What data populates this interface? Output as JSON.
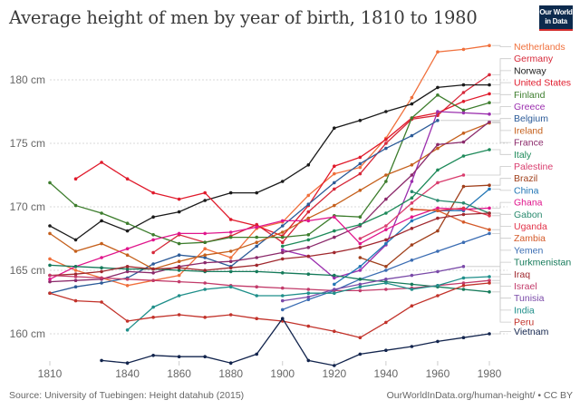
{
  "header": {
    "title": "Average height of men by year of birth, 1810 to 1980",
    "logo_line1": "Our World",
    "logo_line2": "in Data"
  },
  "footer": {
    "source": "Source: University of Tuebingen: Height datahub (2015)",
    "credit": "OurWorldInData.org/human-height/ • CC BY"
  },
  "chart_data": {
    "type": "line",
    "title": "Average height of men by year of birth, 1810 to 1980",
    "xlabel": "",
    "ylabel": "",
    "x_ticks": [
      1810,
      1840,
      1860,
      1880,
      1900,
      1920,
      1940,
      1960,
      1980
    ],
    "y_ticks": [
      160,
      165,
      170,
      175,
      180
    ],
    "y_tick_suffix": " cm",
    "xlim": [
      1810,
      1980
    ],
    "ylim": [
      157.5,
      183
    ],
    "grid": "horizontal-dotted",
    "legend": "right",
    "series": [
      {
        "name": "Netherlands",
        "color": "#f0703c",
        "x": [
          1810,
          1820,
          1830,
          1840,
          1850,
          1860,
          1870,
          1880,
          1890,
          1900,
          1910,
          1920,
          1930,
          1940,
          1950,
          1960,
          1970,
          1980
        ],
        "y": [
          165.9,
          165.0,
          164.4,
          163.8,
          164.2,
          164.6,
          166.7,
          166.0,
          168.3,
          168.8,
          170.9,
          172.6,
          173.1,
          175.4,
          178.6,
          182.2,
          182.4,
          182.7
        ]
      },
      {
        "name": "Germany",
        "color": "#d62839",
        "x": [
          1850,
          1860,
          1870,
          1880,
          1890,
          1900,
          1910,
          1920,
          1930,
          1940,
          1950,
          1960,
          1970,
          1980
        ],
        "y": [
          166.4,
          167.8,
          167.2,
          167.7,
          168.6,
          167.2,
          169.6,
          171.4,
          172.6,
          175.0,
          176.9,
          177.2,
          179.0,
          180.4
        ]
      },
      {
        "name": "Norway",
        "color": "#1b1b1b",
        "x": [
          1810,
          1820,
          1830,
          1840,
          1850,
          1860,
          1870,
          1880,
          1890,
          1900,
          1910,
          1920,
          1930,
          1940,
          1950,
          1960,
          1970,
          1980
        ],
        "y": [
          168.5,
          167.4,
          168.9,
          168.1,
          169.2,
          169.6,
          170.5,
          171.1,
          171.1,
          172.0,
          173.3,
          176.2,
          176.8,
          177.5,
          178.1,
          179.4,
          179.6,
          179.6
        ]
      },
      {
        "name": "United States",
        "color": "#e01b2c",
        "x": [
          1820,
          1830,
          1840,
          1850,
          1860,
          1870,
          1880,
          1890,
          1900,
          1910,
          1920,
          1930,
          1940,
          1950,
          1960,
          1970,
          1980
        ],
        "y": [
          172.2,
          173.5,
          172.2,
          171.1,
          170.6,
          171.1,
          169.0,
          168.5,
          167.7,
          170.1,
          173.2,
          173.9,
          175.3,
          177.0,
          177.4,
          178.3,
          178.9
        ]
      },
      {
        "name": "Finland",
        "color": "#3d7d2d",
        "x": [
          1810,
          1820,
          1830,
          1840,
          1850,
          1860,
          1870,
          1880,
          1890,
          1900,
          1910,
          1920,
          1930,
          1940,
          1950,
          1960,
          1970,
          1980
        ],
        "y": [
          171.9,
          170.1,
          169.5,
          168.7,
          167.8,
          167.1,
          167.2,
          167.6,
          167.6,
          167.6,
          167.8,
          169.3,
          169.2,
          172.0,
          177.0,
          178.8,
          177.6,
          178.2
        ]
      },
      {
        "name": "Greece",
        "color": "#9b2fae",
        "x": [
          1900,
          1910,
          1920,
          1930,
          1940,
          1950,
          1960,
          1970,
          1980
        ],
        "y": [
          166.6,
          166.1,
          164.4,
          165.0,
          167.0,
          172.0,
          177.5,
          177.4,
          177.3
        ]
      },
      {
        "name": "Belgium",
        "color": "#2c5b98",
        "x": [
          1810,
          1820,
          1830,
          1840,
          1850,
          1860,
          1870,
          1880,
          1890,
          1900,
          1910,
          1920,
          1930,
          1940,
          1950,
          1960
        ],
        "y": [
          163.2,
          163.7,
          164.0,
          164.4,
          165.5,
          166.2,
          166.0,
          165.3,
          166.9,
          168.5,
          170.2,
          171.9,
          173.4,
          174.6,
          175.6,
          176.8
        ]
      },
      {
        "name": "Ireland",
        "color": "#c5601c",
        "x": [
          1810,
          1820,
          1830,
          1840,
          1850,
          1860,
          1870,
          1880,
          1890,
          1900,
          1910,
          1920,
          1930,
          1940,
          1950,
          1960,
          1970,
          1980
        ],
        "y": [
          167.9,
          166.5,
          167.1,
          166.2,
          165.1,
          165.7,
          166.2,
          166.5,
          167.2,
          168.0,
          169.1,
          170.1,
          171.3,
          172.5,
          173.3,
          174.6,
          175.8,
          176.6
        ]
      },
      {
        "name": "France",
        "color": "#8b2a6b",
        "x": [
          1810,
          1820,
          1830,
          1840,
          1850,
          1860,
          1870,
          1880,
          1890,
          1900,
          1910,
          1920,
          1930,
          1940,
          1950,
          1960,
          1970,
          1980
        ],
        "y": [
          164.1,
          164.2,
          164.3,
          164.9,
          164.8,
          165.3,
          165.6,
          165.7,
          166.0,
          166.4,
          166.8,
          167.6,
          168.5,
          170.6,
          172.5,
          174.9,
          175.1,
          176.7
        ]
      },
      {
        "name": "Italy",
        "color": "#1e8a5a",
        "x": [
          1900,
          1910,
          1920,
          1930,
          1940,
          1950,
          1960,
          1970,
          1980
        ],
        "y": [
          166.9,
          167.4,
          168.1,
          168.6,
          169.5,
          170.7,
          172.9,
          174.0,
          174.5
        ]
      },
      {
        "name": "Palestine",
        "color": "#d93d6e",
        "x": [
          1930,
          1940,
          1950,
          1960,
          1970
        ],
        "y": [
          167.5,
          168.5,
          170.3,
          171.9,
          172.5
        ]
      },
      {
        "name": "Brazil",
        "color": "#a0401c",
        "x": [
          1930,
          1940,
          1950,
          1960,
          1970,
          1980
        ],
        "y": [
          166.0,
          165.3,
          167.0,
          168.1,
          171.6,
          171.7
        ]
      },
      {
        "name": "China",
        "color": "#2276b5",
        "x": [
          1920,
          1930,
          1940,
          1950,
          1960,
          1970,
          1980
        ],
        "y": [
          163.9,
          165.3,
          167.1,
          168.9,
          169.7,
          169.7,
          171.4
        ]
      },
      {
        "name": "Ghana",
        "color": "#e0168c",
        "x": [
          1810,
          1820,
          1830,
          1840,
          1850,
          1860,
          1870,
          1880,
          1890,
          1900,
          1910,
          1920,
          1930,
          1940,
          1950,
          1960,
          1970,
          1980
        ],
        "y": [
          164.3,
          165.3,
          166.0,
          166.7,
          167.4,
          167.9,
          167.9,
          168.0,
          168.4,
          168.9,
          168.9,
          169.2,
          167.1,
          168.2,
          169.2,
          169.9,
          169.8,
          169.9
        ]
      },
      {
        "name": "Gabon",
        "color": "#2a8a6e",
        "x": [
          1950,
          1960,
          1970,
          1980
        ],
        "y": [
          171.2,
          170.5,
          170.3,
          169.5
        ]
      },
      {
        "name": "Uganda",
        "color": "#e2334a",
        "x": [
          1950,
          1960,
          1970,
          1980
        ],
        "y": [
          169.8,
          169.7,
          169.9,
          169.3
        ]
      },
      {
        "name": "Zambia",
        "color": "#d45a2a",
        "x": [
          1950,
          1960,
          1970,
          1980
        ],
        "y": [
          169.8,
          169.7,
          168.8,
          168.2
        ]
      },
      {
        "name": "Yemen",
        "color": "#3b6db3",
        "x": [
          1900,
          1910,
          1920,
          1930,
          1940,
          1950,
          1960,
          1970,
          1980
        ],
        "y": [
          161.9,
          162.7,
          163.4,
          164.3,
          165.0,
          165.8,
          166.5,
          167.2,
          167.9
        ]
      },
      {
        "name": "Turkmenistan",
        "color": "#157a5a",
        "x": [
          1810,
          1820,
          1830,
          1840,
          1850,
          1860,
          1870,
          1880,
          1890,
          1900,
          1910,
          1920,
          1930,
          1940,
          1950,
          1960,
          1970,
          1980
        ],
        "y": [
          165.4,
          165.3,
          165.2,
          165.1,
          165.1,
          165.0,
          164.9,
          164.9,
          164.9,
          164.8,
          164.7,
          164.6,
          164.3,
          164.1,
          163.9,
          163.7,
          163.5,
          163.3
        ]
      },
      {
        "name": "Iraq",
        "color": "#a0282e",
        "x": [
          1810,
          1820,
          1830,
          1840,
          1850,
          1860,
          1870,
          1880,
          1890,
          1900,
          1910,
          1920,
          1930,
          1940,
          1950,
          1960,
          1970,
          1980
        ],
        "y": [
          164.6,
          164.7,
          164.9,
          165.3,
          165.1,
          165.2,
          165.0,
          165.2,
          165.4,
          165.9,
          166.1,
          166.4,
          166.8,
          167.4,
          168.3,
          169.1,
          169.4,
          169.5
        ]
      },
      {
        "name": "Israel",
        "color": "#c23b6a",
        "x": [
          1810,
          1820,
          1830,
          1840,
          1850,
          1860,
          1870,
          1880,
          1890,
          1900,
          1910,
          1920,
          1930,
          1940,
          1950,
          1960,
          1970,
          1980
        ],
        "y": [
          164.6,
          164.5,
          164.4,
          164.3,
          164.2,
          164.1,
          164.0,
          163.8,
          163.7,
          163.6,
          163.5,
          163.4,
          163.4,
          163.5,
          163.6,
          163.8,
          164.0,
          164.2
        ]
      },
      {
        "name": "Tunisia",
        "color": "#7a4aa8",
        "x": [
          1900,
          1910,
          1920,
          1930,
          1940,
          1950,
          1960,
          1970
        ],
        "y": [
          162.6,
          162.9,
          163.5,
          163.9,
          164.3,
          164.6,
          164.9,
          165.3
        ]
      },
      {
        "name": "India",
        "color": "#1f8f8a",
        "x": [
          1840,
          1850,
          1860,
          1870,
          1880,
          1890,
          1900,
          1910,
          1920,
          1930,
          1940,
          1950,
          1960,
          1970,
          1980
        ],
        "y": [
          160.3,
          162.1,
          163.0,
          163.5,
          163.7,
          163.0,
          163.0,
          163.2,
          163.2,
          163.7,
          164.0,
          163.5,
          163.8,
          164.4,
          164.5
        ]
      },
      {
        "name": "Peru",
        "color": "#c2322a",
        "x": [
          1810,
          1820,
          1830,
          1840,
          1850,
          1860,
          1870,
          1880,
          1890,
          1900,
          1910,
          1920,
          1930,
          1940,
          1950,
          1960,
          1970,
          1980
        ],
        "y": [
          163.2,
          162.6,
          162.5,
          161.0,
          161.3,
          161.5,
          161.3,
          161.5,
          161.2,
          161.0,
          160.6,
          160.2,
          159.7,
          160.9,
          162.2,
          163.0,
          163.8,
          164.0
        ]
      },
      {
        "name": "Vietnam",
        "color": "#12244d",
        "x": [
          1830,
          1840,
          1850,
          1860,
          1870,
          1880,
          1890,
          1900,
          1910,
          1920,
          1930,
          1940,
          1950,
          1960,
          1970,
          1980
        ],
        "y": [
          157.9,
          157.7,
          158.3,
          158.2,
          158.2,
          157.7,
          158.4,
          161.2,
          157.9,
          157.5,
          158.4,
          158.7,
          159.0,
          159.4,
          159.7,
          160.0
        ]
      }
    ],
    "legend_order": [
      "Netherlands",
      "Germany",
      "Norway",
      "United States",
      "Finland",
      "Greece",
      "Belgium",
      "Ireland",
      "France",
      "Italy",
      "Palestine",
      "Brazil",
      "China",
      "Ghana",
      "Gabon",
      "Uganda",
      "Zambia",
      "Yemen",
      "Turkmenistan",
      "Iraq",
      "Israel",
      "Tunisia",
      "India",
      "Peru",
      "Vietnam"
    ]
  }
}
